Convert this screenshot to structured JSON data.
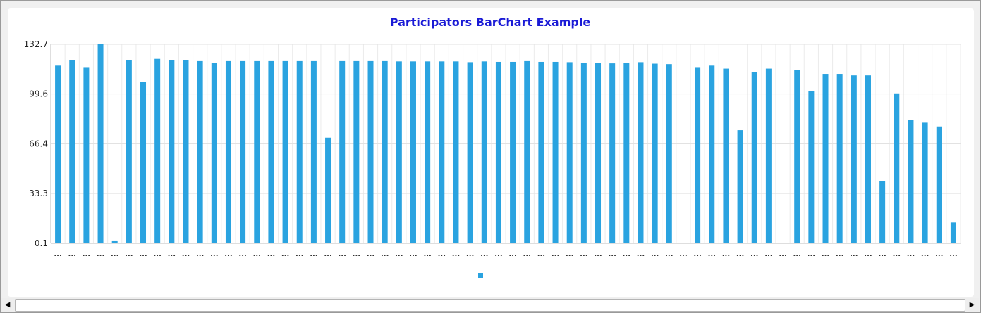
{
  "chart_data": {
    "type": "bar",
    "title": "Participators BarChart Example",
    "xlabel": "",
    "ylabel": "",
    "ylim": [
      0.1,
      132.7
    ],
    "yticks": [
      "132.7",
      "99.6",
      "66.4",
      "33.3",
      "0.1"
    ],
    "category_label": "...",
    "grid": true,
    "legend_position": "bottom-center",
    "bar_color": "#2aa3e0",
    "title_color": "#1a1ad6",
    "values": [
      118.5,
      122,
      117.5,
      132.7,
      2,
      122,
      107.5,
      123,
      122,
      122,
      121.5,
      120.5,
      121.5,
      121.5,
      121.5,
      121.5,
      121.5,
      121.5,
      121.5,
      70.5,
      121.5,
      121.5,
      121.5,
      121.5,
      121.3,
      121.3,
      121.3,
      121.3,
      121.3,
      120.8,
      121.3,
      121,
      121,
      121.5,
      121,
      121,
      120.8,
      120.5,
      120.5,
      120,
      120.5,
      120.8,
      119.8,
      119.5,
      0,
      117.5,
      118.5,
      116.5,
      75.5,
      114,
      116.5,
      0,
      115.5,
      101.5,
      113,
      113,
      112,
      112,
      41.5,
      100,
      82.5,
      80.5,
      78,
      14
    ]
  }
}
